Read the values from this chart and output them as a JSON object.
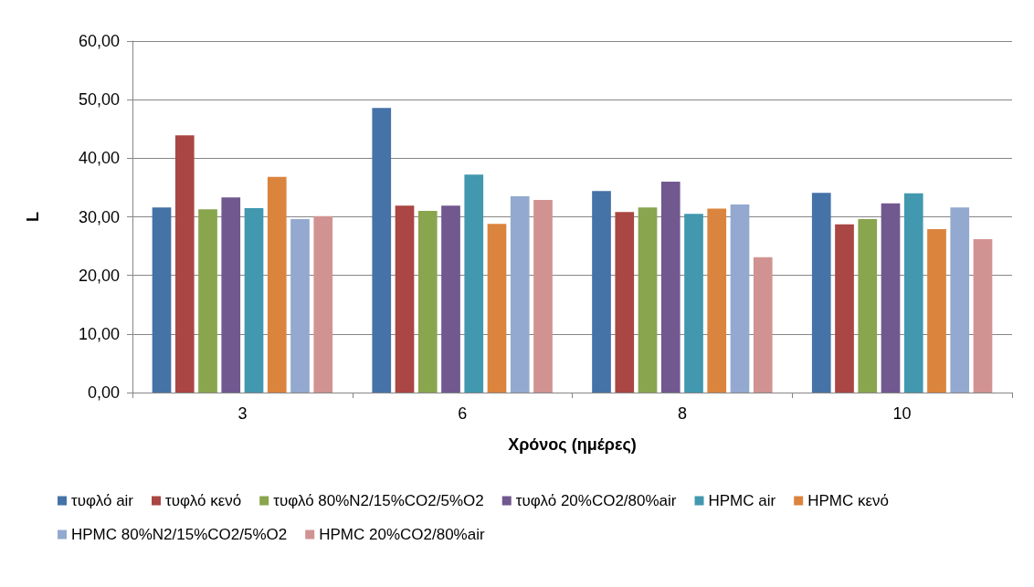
{
  "chart_data": {
    "type": "bar",
    "xlabel": "Χρόνος (ημέρες)",
    "ylabel": "L",
    "categories": [
      "3",
      "6",
      "8",
      "10"
    ],
    "series": [
      {
        "name": "τυφλό air",
        "color": "#4572a7",
        "values": [
          31.6,
          48.6,
          34.4,
          34.1
        ]
      },
      {
        "name": "τυφλό κενό",
        "color": "#aa4643",
        "values": [
          43.9,
          31.9,
          30.8,
          28.7
        ]
      },
      {
        "name": "τυφλό 80%N2/15%CO2/5%O2",
        "color": "#89a54e",
        "values": [
          31.3,
          31.0,
          31.6,
          29.6
        ]
      },
      {
        "name": "τυφλό 20%CO2/80%air",
        "color": "#71588f",
        "values": [
          33.3,
          31.9,
          36.0,
          32.3
        ]
      },
      {
        "name": "HPMC air",
        "color": "#4198af",
        "values": [
          31.5,
          37.2,
          30.5,
          34.0
        ]
      },
      {
        "name": "HPMC κενό",
        "color": "#db843d",
        "values": [
          36.8,
          28.8,
          31.4,
          27.9
        ]
      },
      {
        "name": "HPMC 80%N2/15%CO2/5%O2",
        "color": "#93a9cf",
        "values": [
          29.6,
          33.5,
          32.1,
          31.6
        ]
      },
      {
        "name": "HPMC 20%CO2/80%air",
        "color": "#d19392",
        "values": [
          30.1,
          32.9,
          23.1,
          26.2
        ]
      }
    ],
    "ylim": [
      0,
      60
    ],
    "yticks": [
      {
        "value": 0,
        "label": "0,00"
      },
      {
        "value": 10,
        "label": "10,00"
      },
      {
        "value": 20,
        "label": "20,00"
      },
      {
        "value": 30,
        "label": "30,00"
      },
      {
        "value": 40,
        "label": "40,00"
      },
      {
        "value": 50,
        "label": "50,00"
      },
      {
        "value": 60,
        "label": "60,00"
      }
    ],
    "grid": "y",
    "legend": "bottom"
  }
}
